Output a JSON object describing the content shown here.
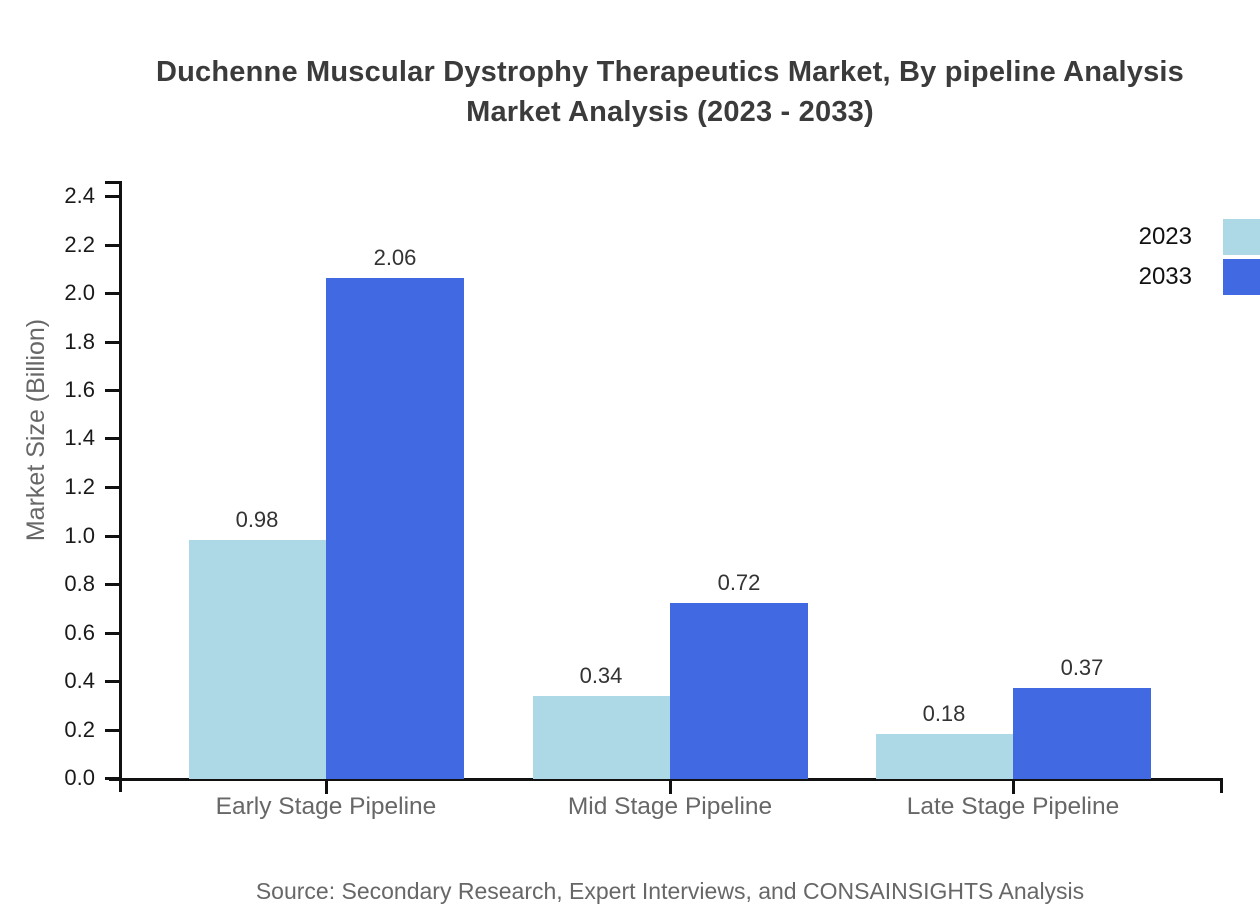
{
  "title": {
    "line1": "Duchenne Muscular Dystrophy Therapeutics Market, By pipeline Analysis",
    "line2": "Market Analysis (2023 - 2033)"
  },
  "chart_data": {
    "type": "bar",
    "categories": [
      "Early Stage Pipeline",
      "Mid Stage Pipeline",
      "Late Stage Pipeline"
    ],
    "series": [
      {
        "name": "2023",
        "color": "#ADD8E6",
        "values": [
          0.98,
          0.34,
          0.18
        ]
      },
      {
        "name": "2033",
        "color": "#4169E1",
        "values": [
          2.06,
          0.72,
          0.37
        ]
      }
    ],
    "title": "Duchenne Muscular Dystrophy Therapeutics Market, By pipeline Analysis Market Analysis (2023 - 2033)",
    "xlabel": "",
    "ylabel": "Market Size (Billion)",
    "ylim": [
      0,
      2.4
    ],
    "ytick_step": 0.2,
    "ytick_labels": [
      "0.0",
      "0.2",
      "0.4",
      "0.6",
      "0.8",
      "1.0",
      "1.2",
      "1.4",
      "1.6",
      "1.8",
      "2.0",
      "2.2",
      "2.4"
    ],
    "grid": false,
    "legend_position": "top-right",
    "value_labels": [
      "0.98",
      "2.06",
      "0.34",
      "0.72",
      "0.18",
      "0.37"
    ]
  },
  "source_note": "Source: Secondary Research, Expert Interviews, and CONSAINSIGHTS Analysis"
}
